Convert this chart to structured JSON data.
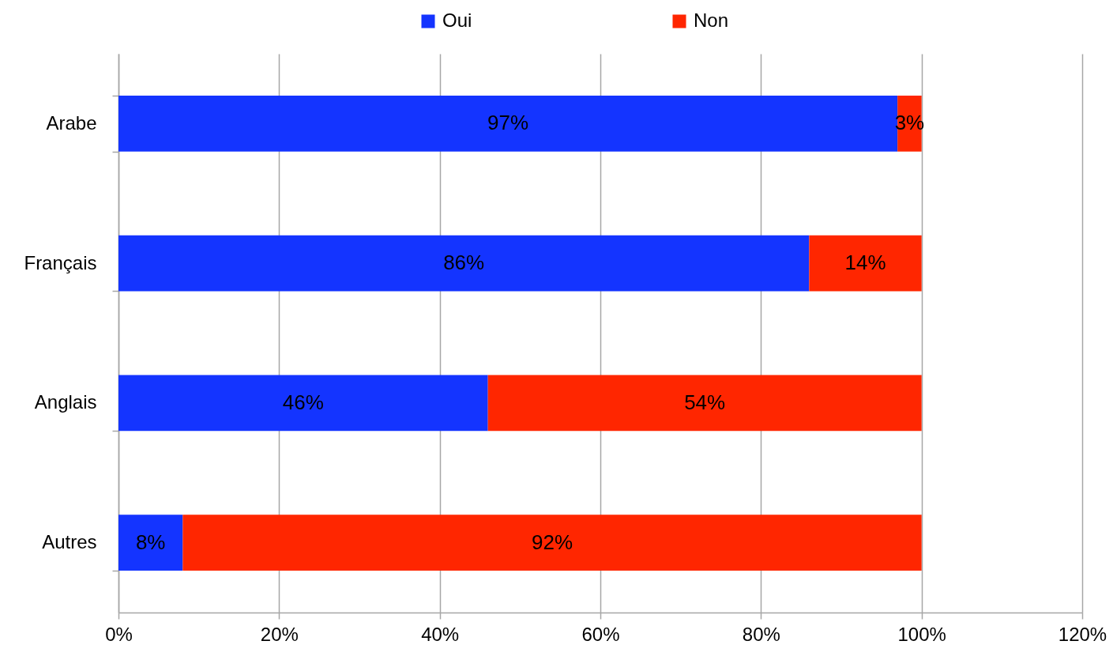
{
  "chart_data": {
    "type": "bar",
    "orientation": "horizontal",
    "stacked": true,
    "categories": [
      "Arabe",
      "Français",
      "Anglais",
      "Autres"
    ],
    "series": [
      {
        "name": "Oui",
        "color": "#1434ff",
        "values": [
          97,
          86,
          46,
          8
        ],
        "value_labels": [
          "97%",
          "86%",
          "46%",
          "8%"
        ]
      },
      {
        "name": "Non",
        "color": "#ff2600",
        "values": [
          3,
          14,
          54,
          92
        ],
        "value_labels": [
          "3%",
          "14%",
          "54%",
          "92%"
        ]
      }
    ],
    "xlim": [
      0,
      120
    ],
    "xticks": [
      {
        "value": 0,
        "label": "0%"
      },
      {
        "value": 20,
        "label": "20%"
      },
      {
        "value": 40,
        "label": "40%"
      },
      {
        "value": 60,
        "label": "60%"
      },
      {
        "value": 80,
        "label": "80%"
      },
      {
        "value": 100,
        "label": "100%"
      },
      {
        "value": 120,
        "label": "120%"
      }
    ],
    "grid": "x",
    "legend": "top"
  }
}
